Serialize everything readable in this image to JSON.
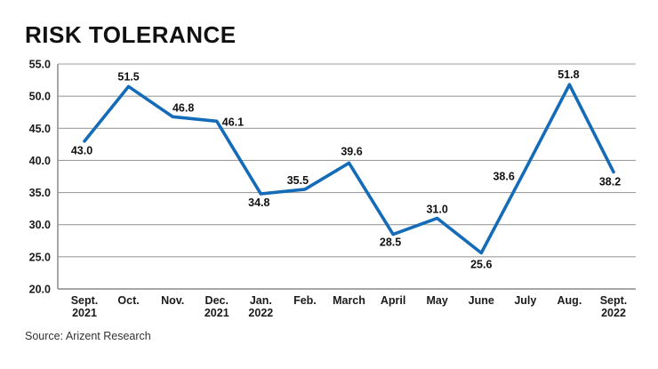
{
  "title": "RISK TOLERANCE",
  "source": "Source: Arizent Research",
  "chart_data": {
    "type": "line",
    "title": "RISK TOLERANCE",
    "xlabel": "",
    "ylabel": "",
    "categories": [
      "Sept.\n2021",
      "Oct.",
      "Nov.",
      "Dec.\n2021",
      "Jan.\n2022",
      "Feb.",
      "March",
      "April",
      "May",
      "June",
      "July",
      "Aug.",
      "Sept.\n2022"
    ],
    "values": [
      43.0,
      51.5,
      46.8,
      46.1,
      34.8,
      35.5,
      39.6,
      28.5,
      31.0,
      25.6,
      38.6,
      51.8,
      38.2
    ],
    "ylim": [
      20.0,
      55.0
    ],
    "ytick_step": 5.0,
    "ytick_labels": [
      "55.0",
      "50.0",
      "45.0",
      "40.0",
      "35.0",
      "30.0",
      "25.0",
      "20.0"
    ],
    "grid": true,
    "legend": "none",
    "data_labels": true,
    "line_color": "#146CB8",
    "grid_color": "#9e9e9e",
    "axis_color": "#8a8a8a",
    "label_color": "#111111",
    "source": "Source: Arizent Research"
  }
}
